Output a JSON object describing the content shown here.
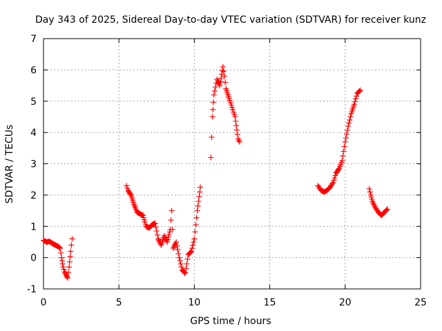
{
  "chart_data": {
    "type": "scatter",
    "title": "Day 343 of 2025, Sidereal Day-to-day VTEC variation (SDTVAR) for receiver kunz",
    "xlabel": "GPS time / hours",
    "ylabel": "SDTVAR / TECUs",
    "xlim": [
      0,
      25
    ],
    "ylim": [
      -1,
      7
    ],
    "xticks": [
      0,
      5,
      10,
      15,
      20,
      25
    ],
    "yticks": [
      -1,
      0,
      1,
      2,
      3,
      4,
      5,
      6,
      7
    ],
    "grid": true,
    "marker": "+",
    "color": "#ff0000",
    "series": [
      {
        "name": "SDTVAR",
        "segments": [
          {
            "x": [
              0.0,
              0.2,
              0.4,
              0.6,
              0.8,
              1.0,
              1.1,
              1.2,
              1.3,
              1.4,
              1.5,
              1.6,
              1.7,
              1.8,
              1.9
            ],
            "y": [
              0.55,
              0.5,
              0.52,
              0.45,
              0.4,
              0.35,
              0.3,
              0.0,
              -0.3,
              -0.45,
              -0.55,
              -0.65,
              -0.3,
              0.2,
              0.6
            ]
          },
          {
            "x": [
              5.5,
              5.6,
              5.8,
              6.0,
              6.2,
              6.4,
              6.6,
              6.8,
              7.0,
              7.2,
              7.4,
              7.6,
              7.8,
              8.0,
              8.2,
              8.4,
              8.5,
              8.6,
              8.8,
              9.0,
              9.2,
              9.4,
              9.6,
              9.8,
              10.0,
              10.2,
              10.4
            ],
            "y": [
              2.3,
              2.15,
              2.0,
              1.7,
              1.45,
              1.4,
              1.35,
              1.0,
              0.95,
              1.05,
              1.1,
              0.6,
              0.4,
              0.7,
              0.5,
              0.9,
              1.5,
              0.3,
              0.5,
              0.0,
              -0.4,
              -0.5,
              0.1,
              0.2,
              0.6,
              1.5,
              2.25
            ]
          },
          {
            "x": [
              11.1,
              11.2,
              11.3,
              11.5,
              11.7,
              11.9,
              12.0,
              12.1,
              12.3,
              12.5,
              12.7,
              12.9,
              13.0
            ],
            "y": [
              3.2,
              4.5,
              5.2,
              5.7,
              5.5,
              6.1,
              5.8,
              5.4,
              5.1,
              4.8,
              4.5,
              3.8,
              3.7
            ]
          },
          {
            "x": [
              18.2,
              18.4,
              18.6,
              18.8,
              19.0,
              19.2,
              19.4,
              19.6,
              19.8,
              20.0,
              20.2,
              20.4,
              20.6,
              20.8,
              21.0
            ],
            "y": [
              2.3,
              2.15,
              2.1,
              2.15,
              2.25,
              2.4,
              2.7,
              2.85,
              3.1,
              3.7,
              4.2,
              4.6,
              4.9,
              5.25,
              5.35
            ]
          },
          {
            "x": [
              21.6,
              21.7,
              21.8,
              22.0,
              22.2,
              22.4,
              22.6,
              22.8
            ],
            "y": [
              2.2,
              2.0,
              1.8,
              1.6,
              1.45,
              1.35,
              1.45,
              1.55
            ]
          }
        ]
      }
    ]
  }
}
